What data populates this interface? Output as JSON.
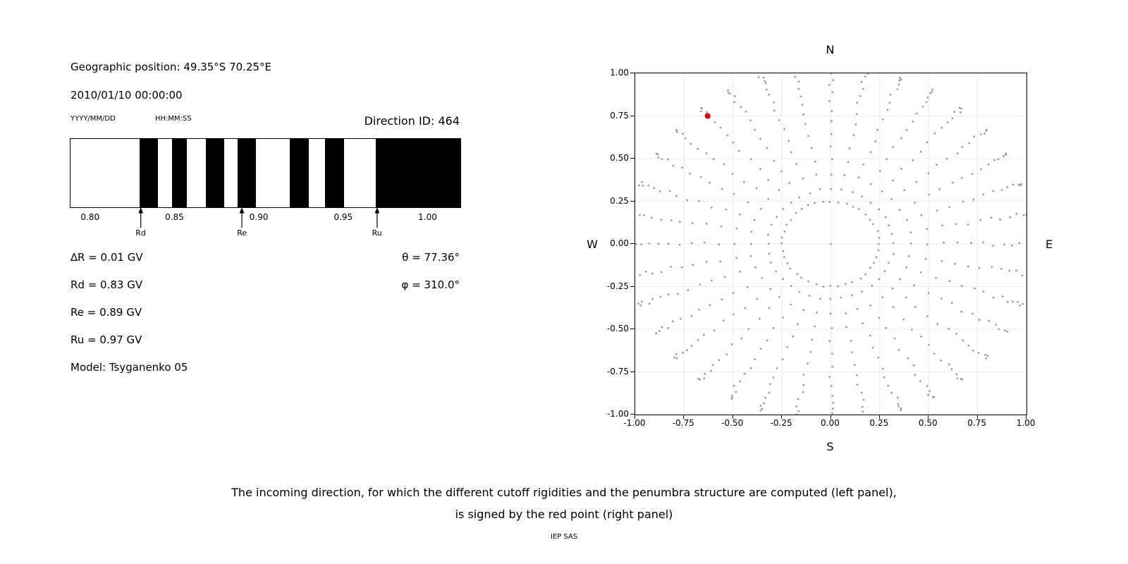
{
  "left_panel": {
    "geo_position": "Geographic position: 49.35°S 70.25°E",
    "datetime": "2010/01/10 00:00:00",
    "date_format": "YYYY/MM/DD",
    "time_format": "HH:MM:SS",
    "direction_id": "Direction ID: 464",
    "params": {
      "delta_r": "∆R = 0.01 GV",
      "rd": "Rd = 0.83 GV",
      "re": "Re = 0.89 GV",
      "ru": "Ru = 0.97 GV",
      "model": "Model: Tsyganenko 05",
      "theta": "θ = 77.36°",
      "phi": "φ = 310.0°"
    }
  },
  "chart_data": [
    {
      "type": "bar",
      "name": "penumbra-structure",
      "title": "Penumbra structure (black = forbidden rigidity, white = allowed)",
      "xlim": [
        0.788,
        1.019
      ],
      "xticks": [
        0.8,
        0.85,
        0.9,
        0.95,
        1.0
      ],
      "tick_decimals": 2,
      "forbidden_bands": [
        [
          0.829,
          0.84
        ],
        [
          0.848,
          0.857
        ],
        [
          0.868,
          0.879
        ],
        [
          0.887,
          0.898
        ],
        [
          0.918,
          0.929
        ],
        [
          0.939,
          0.95
        ],
        [
          0.969,
          1.019
        ]
      ],
      "allowed_color": "#ffffff",
      "forbidden_color": "#000000",
      "markers": [
        {
          "label": "Rd",
          "x": 0.83
        },
        {
          "label": "Re",
          "x": 0.89
        },
        {
          "label": "Ru",
          "x": 0.97
        }
      ]
    },
    {
      "type": "scatter",
      "name": "incoming-direction-map",
      "xlim": [
        -1,
        1
      ],
      "ylim": [
        -1,
        1
      ],
      "xticks": [
        -1.0,
        -0.75,
        -0.5,
        -0.25,
        0.0,
        0.25,
        0.5,
        0.75,
        1.0
      ],
      "yticks": [
        -1.0,
        -0.75,
        -0.5,
        -0.25,
        0.0,
        0.25,
        0.5,
        0.75,
        1.0
      ],
      "tick_decimals": 2,
      "grid": true,
      "grid_color": "#ececec",
      "compass": {
        "top": "N",
        "bottom": "S",
        "left": "W",
        "right": "E"
      },
      "dot_color": "#9a9a9a",
      "red_color": "#e60000",
      "red_point": {
        "x": -0.63,
        "y": 0.75
      },
      "ray_pattern": {
        "n_rays": 36,
        "start_deg": 0,
        "r_start": 0.32,
        "r_end": 1.04,
        "dots_per_ray": 15,
        "taper_exp": 1.8,
        "twist_deg": 0
      },
      "inner_ring": {
        "radius": 0.25,
        "n_dots": 40
      },
      "center_dot": {
        "x": 0,
        "y": 0
      }
    }
  ],
  "caption": {
    "line1": "The incoming direction, for which the different cutoff rigidities and the penumbra structure are computed (left panel),",
    "line2": "is signed by the red point (right panel)",
    "credit": "IEP SAS"
  }
}
